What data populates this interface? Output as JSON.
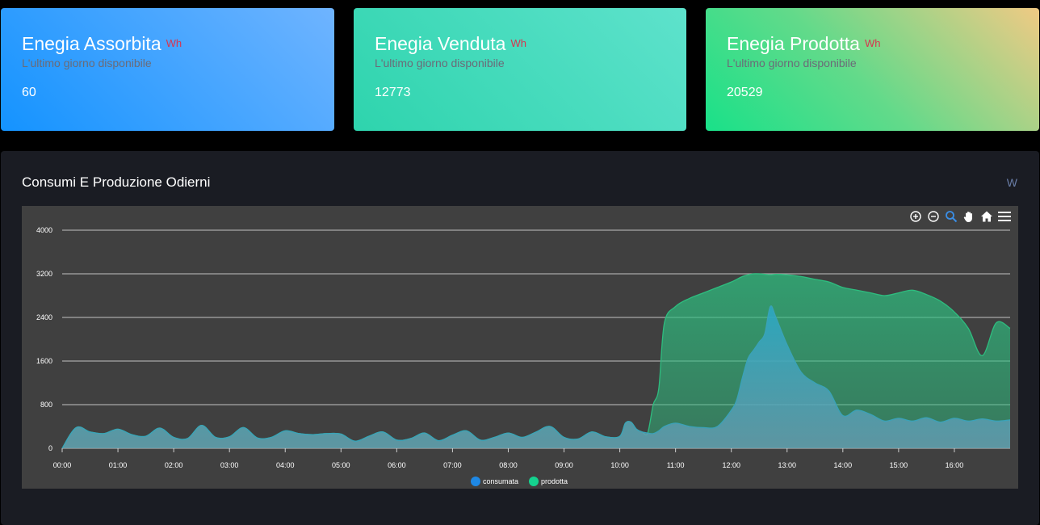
{
  "cards": [
    {
      "title": "Enegia Assorbita",
      "unit": "Wh",
      "subtitle": "L'ultimo giorno disponibile",
      "value": "60"
    },
    {
      "title": "Enegia Venduta",
      "unit": "Wh",
      "subtitle": "L'ultimo giorno disponibile",
      "value": "12773"
    },
    {
      "title": "Enegia Prodotta",
      "unit": "Wh",
      "subtitle": "L'ultimo giorno disponibile",
      "value": "20529"
    }
  ],
  "panel": {
    "title": "Consumi E Produzione Odierni",
    "unit": "W"
  },
  "toolbar": {
    "icons": [
      "zoom-in-icon",
      "zoom-out-icon",
      "selection-zoom-icon",
      "pan-icon",
      "home-icon",
      "menu-icon"
    ]
  },
  "colors": {
    "consumata": "#3aa2b8",
    "prodotta": "#2ebd7f",
    "grid": "#a8a8a8"
  },
  "chart_data": {
    "type": "area",
    "title": "",
    "xlabel": "",
    "ylabel": "",
    "ylim": [
      0,
      4000
    ],
    "yticks": [
      "4000",
      "3200",
      "2400",
      "1600",
      "800",
      "0"
    ],
    "xticks": [
      "00:00",
      "01:00",
      "02:00",
      "03:00",
      "04:00",
      "05:00",
      "06:00",
      "07:00",
      "08:00",
      "09:00",
      "10:00",
      "11:00",
      "12:00",
      "13:00",
      "14:00",
      "15:00",
      "16:00"
    ],
    "x_hours": [
      0,
      0.25,
      0.5,
      0.75,
      1,
      1.25,
      1.5,
      1.75,
      2,
      2.25,
      2.5,
      2.75,
      3,
      3.25,
      3.5,
      3.75,
      4,
      4.25,
      4.5,
      4.75,
      5,
      5.25,
      5.5,
      5.75,
      6,
      6.25,
      6.5,
      6.75,
      7,
      7.25,
      7.5,
      7.75,
      8,
      8.25,
      8.5,
      8.75,
      9,
      9.25,
      9.5,
      9.75,
      10,
      10.1,
      10.2,
      10.3,
      10.4,
      10.5,
      10.6,
      10.7,
      10.8,
      11,
      11.25,
      11.5,
      11.75,
      12,
      12.1,
      12.2,
      12.3,
      12.4,
      12.5,
      12.6,
      12.7,
      12.8,
      13,
      13.25,
      13.5,
      13.75,
      14,
      14.25,
      14.5,
      14.75,
      15,
      15.25,
      15.5,
      15.75,
      16,
      16.25,
      16.5,
      16.75,
      17
    ],
    "grid": true,
    "legend": "bottom-center",
    "series": [
      {
        "name": "consumata",
        "values": [
          0,
          380,
          300,
          270,
          350,
          250,
          220,
          370,
          200,
          180,
          420,
          200,
          210,
          380,
          190,
          200,
          320,
          270,
          250,
          270,
          260,
          130,
          220,
          300,
          150,
          180,
          280,
          140,
          240,
          320,
          150,
          200,
          280,
          200,
          300,
          400,
          200,
          170,
          300,
          210,
          220,
          460,
          480,
          350,
          300,
          280,
          270,
          320,
          400,
          460,
          400,
          380,
          400,
          700,
          900,
          1300,
          1650,
          1800,
          1950,
          2100,
          2600,
          2400,
          1900,
          1400,
          1200,
          1050,
          600,
          700,
          620,
          500,
          550,
          500,
          560,
          480,
          550,
          500,
          540,
          500,
          520
        ]
      },
      {
        "name": "prodotta",
        "values": [
          0,
          380,
          300,
          270,
          350,
          250,
          220,
          370,
          200,
          180,
          420,
          200,
          210,
          380,
          190,
          200,
          320,
          270,
          250,
          270,
          260,
          130,
          220,
          300,
          150,
          180,
          280,
          140,
          240,
          320,
          150,
          200,
          280,
          200,
          300,
          400,
          200,
          170,
          300,
          210,
          220,
          460,
          480,
          350,
          300,
          280,
          800,
          1100,
          2300,
          2600,
          2750,
          2850,
          2950,
          3050,
          3100,
          3150,
          3180,
          3200,
          3200,
          3190,
          3180,
          3190,
          3180,
          3150,
          3100,
          3050,
          2950,
          2900,
          2850,
          2800,
          2850,
          2900,
          2820,
          2700,
          2500,
          2200,
          1700,
          2300,
          2200
        ]
      }
    ]
  }
}
